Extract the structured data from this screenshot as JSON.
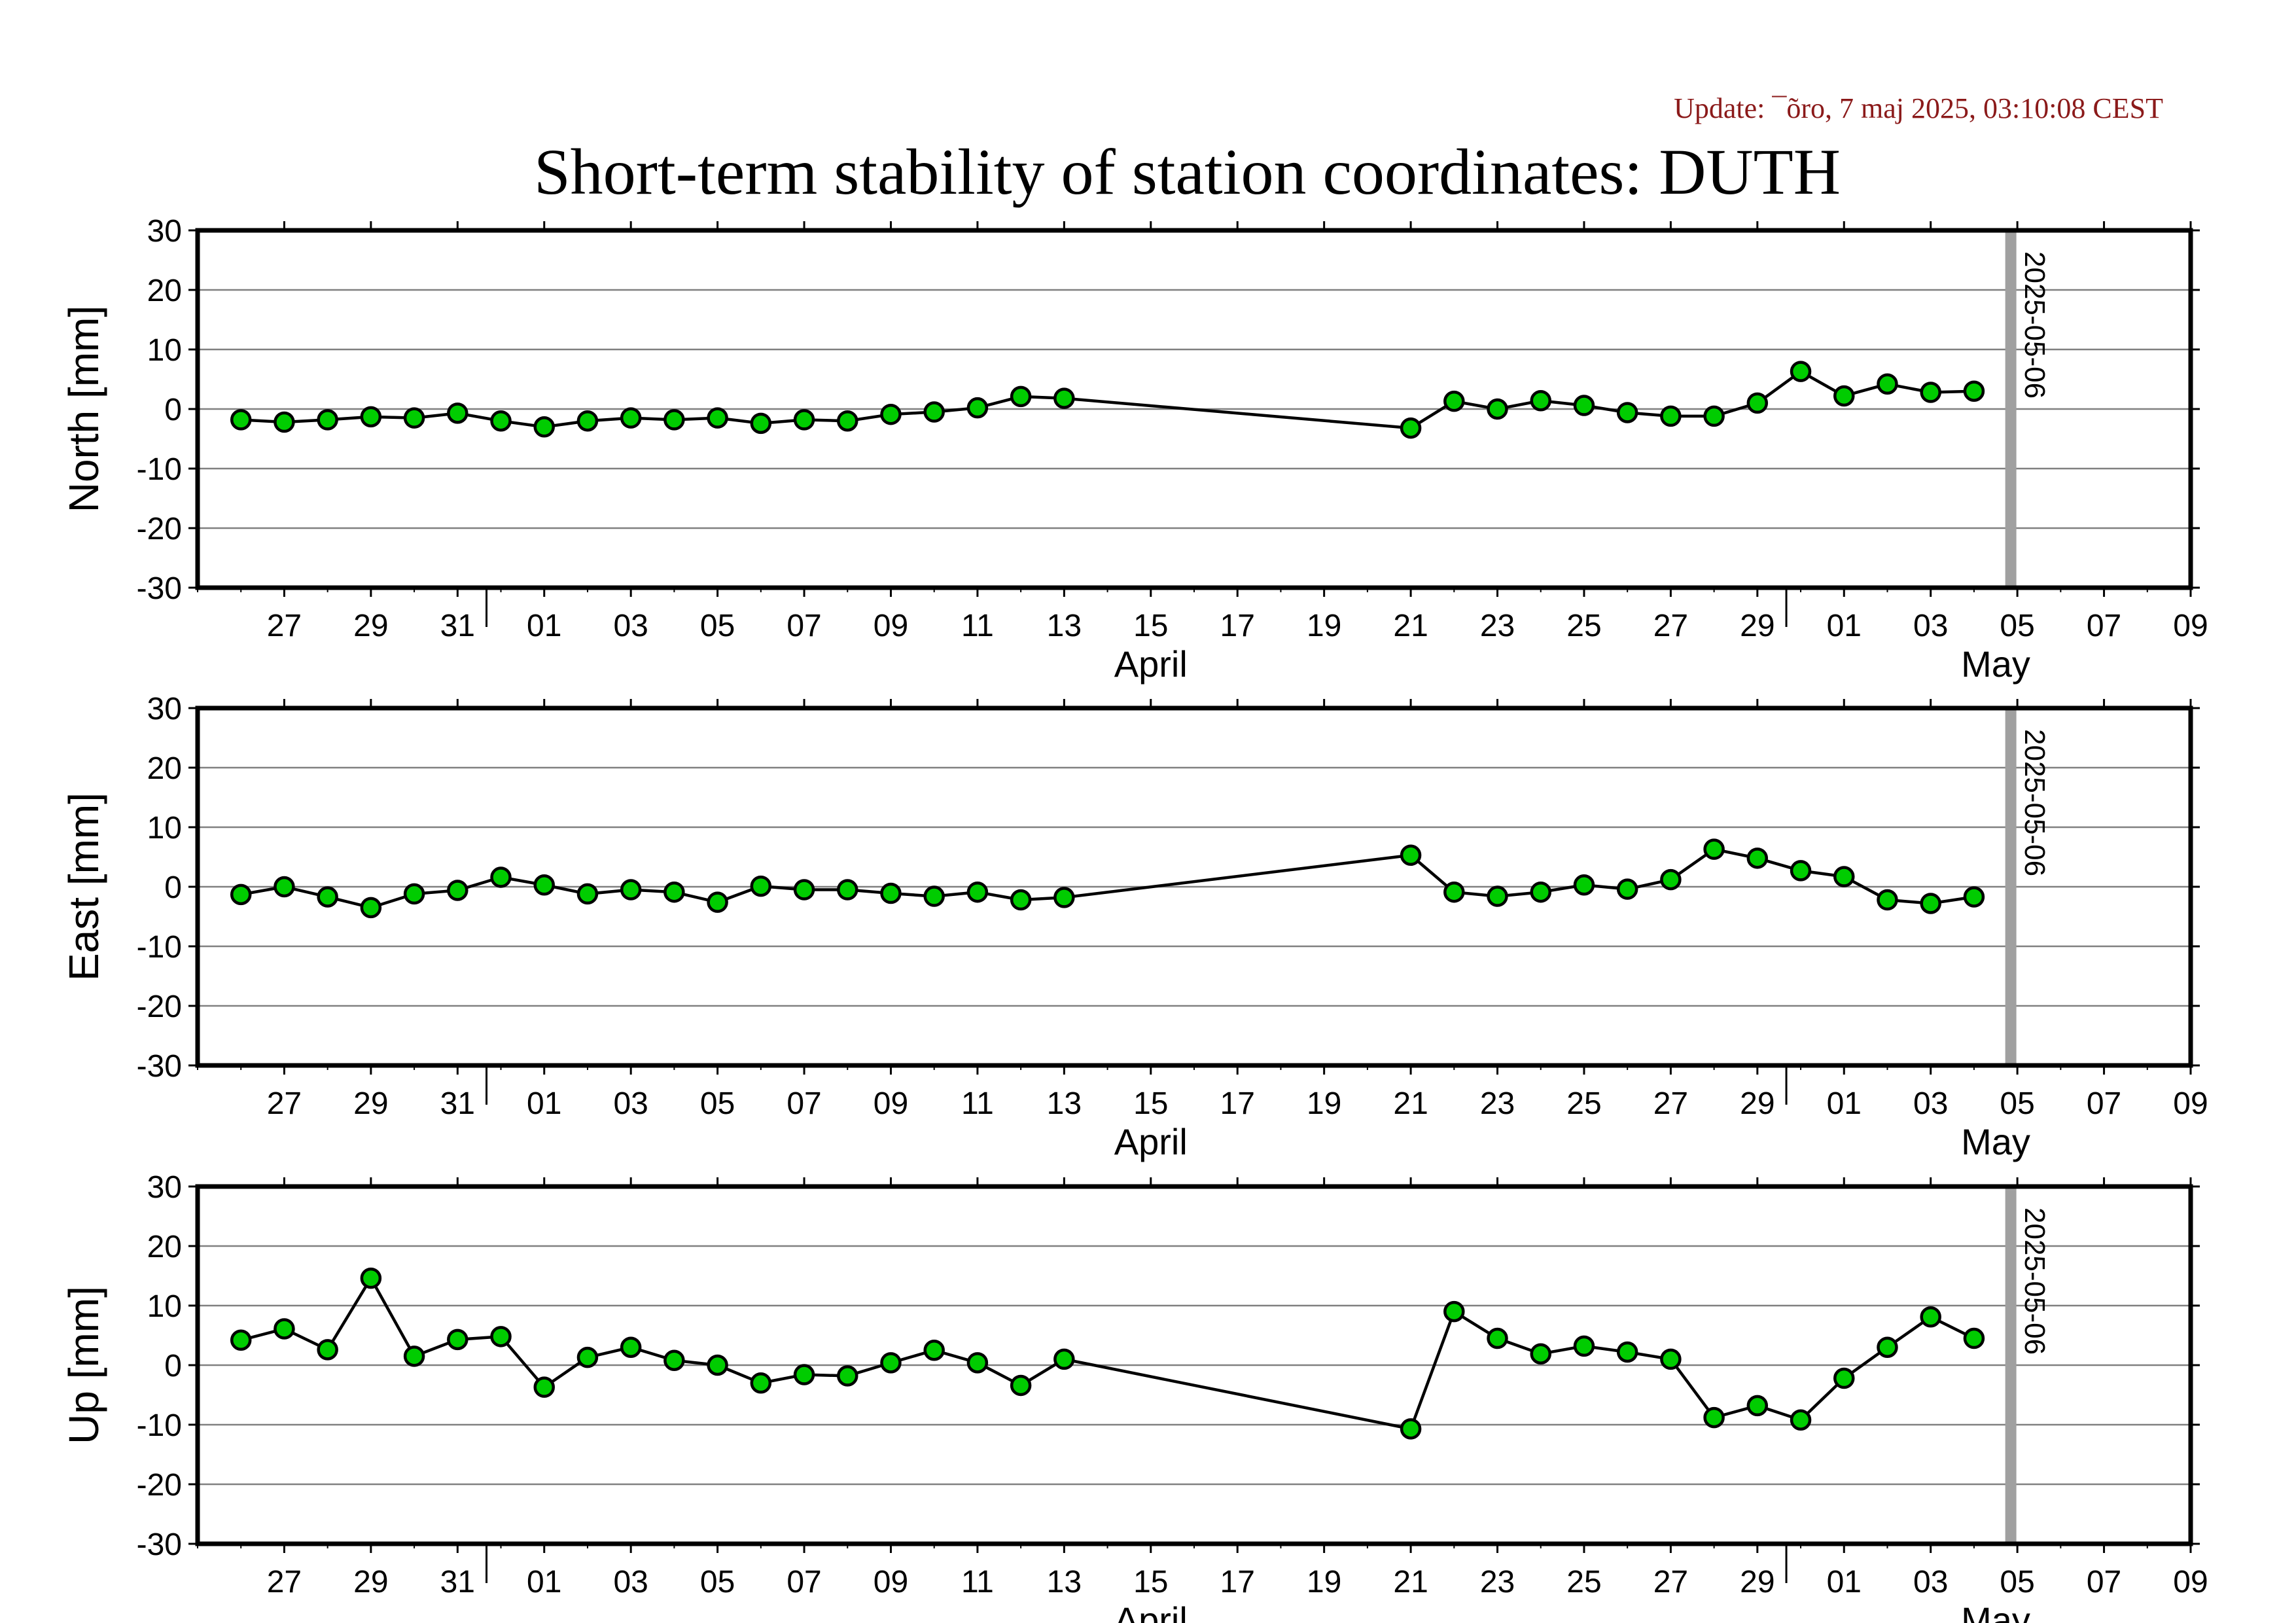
{
  "update_text": "Update: ¯õro, 7 maj 2025, 03:10:08 CEST",
  "title": "Short-term stability of station coordinates: DUTH",
  "chart_data": {
    "type": "line",
    "x_start": "2025-03-25",
    "x_end": "2025-05-10",
    "x_tick_labels": [
      "27",
      "29",
      "31",
      "01",
      "03",
      "05",
      "07",
      "09",
      "11",
      "13",
      "15",
      "17",
      "19",
      "21",
      "23",
      "25",
      "27",
      "29",
      "01",
      "03",
      "05",
      "07",
      "09"
    ],
    "month_labels": [
      "April",
      "May"
    ],
    "marker_line": {
      "date": "2025-05-06",
      "label": "2025-05-06",
      "color": "#a0a0a0"
    },
    "marker_color": "#00cc00",
    "ylim": [
      -30,
      30
    ],
    "y_ticks": [
      30,
      20,
      10,
      0,
      -10,
      -20,
      -30
    ],
    "grid": true,
    "panels": [
      {
        "ylabel": "North [mm]",
        "points": [
          [
            "2025-03-26",
            -1.8
          ],
          [
            "2025-03-27",
            -2.2
          ],
          [
            "2025-03-28",
            -1.8
          ],
          [
            "2025-03-29",
            -1.3
          ],
          [
            "2025-03-30",
            -1.5
          ],
          [
            "2025-03-31",
            -0.7
          ],
          [
            "2025-04-01",
            -2.0
          ],
          [
            "2025-04-02",
            -3.0
          ],
          [
            "2025-04-03",
            -2.0
          ],
          [
            "2025-04-04",
            -1.5
          ],
          [
            "2025-04-05",
            -1.8
          ],
          [
            "2025-04-06",
            -1.5
          ],
          [
            "2025-04-07",
            -2.4
          ],
          [
            "2025-04-08",
            -1.8
          ],
          [
            "2025-04-09",
            -2.0
          ],
          [
            "2025-04-10",
            -0.9
          ],
          [
            "2025-04-11",
            -0.5
          ],
          [
            "2025-04-12",
            0.2
          ],
          [
            "2025-04-13",
            2.1
          ],
          [
            "2025-04-14",
            1.8
          ],
          [
            "2025-04-22",
            -3.2
          ],
          [
            "2025-04-23",
            1.3
          ],
          [
            "2025-04-24",
            0.0
          ],
          [
            "2025-04-25",
            1.4
          ],
          [
            "2025-04-26",
            0.6
          ],
          [
            "2025-04-27",
            -0.6
          ],
          [
            "2025-04-28",
            -1.2
          ],
          [
            "2025-04-29",
            -1.2
          ],
          [
            "2025-04-30",
            1.0
          ],
          [
            "2025-05-01",
            6.3
          ],
          [
            "2025-05-02",
            2.2
          ],
          [
            "2025-05-03",
            4.2
          ],
          [
            "2025-05-04",
            2.8
          ],
          [
            "2025-05-05",
            3.0
          ]
        ]
      },
      {
        "ylabel": "East [mm]",
        "points": [
          [
            "2025-03-26",
            -1.3
          ],
          [
            "2025-03-27",
            0.0
          ],
          [
            "2025-03-28",
            -1.7
          ],
          [
            "2025-03-29",
            -3.5
          ],
          [
            "2025-03-30",
            -1.2
          ],
          [
            "2025-03-31",
            -0.6
          ],
          [
            "2025-04-01",
            1.6
          ],
          [
            "2025-04-02",
            0.3
          ],
          [
            "2025-04-03",
            -1.2
          ],
          [
            "2025-04-04",
            -0.5
          ],
          [
            "2025-04-05",
            -0.9
          ],
          [
            "2025-04-06",
            -2.6
          ],
          [
            "2025-04-07",
            0.1
          ],
          [
            "2025-04-08",
            -0.5
          ],
          [
            "2025-04-09",
            -0.5
          ],
          [
            "2025-04-10",
            -1.1
          ],
          [
            "2025-04-11",
            -1.6
          ],
          [
            "2025-04-12",
            -0.9
          ],
          [
            "2025-04-13",
            -2.2
          ],
          [
            "2025-04-14",
            -1.8
          ],
          [
            "2025-04-22",
            5.3
          ],
          [
            "2025-04-23",
            -0.9
          ],
          [
            "2025-04-24",
            -1.6
          ],
          [
            "2025-04-25",
            -0.9
          ],
          [
            "2025-04-26",
            0.3
          ],
          [
            "2025-04-27",
            -0.4
          ],
          [
            "2025-04-28",
            1.2
          ],
          [
            "2025-04-29",
            6.3
          ],
          [
            "2025-04-30",
            4.8
          ],
          [
            "2025-05-01",
            2.7
          ],
          [
            "2025-05-02",
            1.7
          ],
          [
            "2025-05-03",
            -2.2
          ],
          [
            "2025-05-04",
            -2.8
          ],
          [
            "2025-05-05",
            -1.7
          ]
        ]
      },
      {
        "ylabel": "Up [mm]",
        "points": [
          [
            "2025-03-26",
            4.2
          ],
          [
            "2025-03-27",
            6.1
          ],
          [
            "2025-03-28",
            2.6
          ],
          [
            "2025-03-29",
            14.6
          ],
          [
            "2025-03-30",
            1.5
          ],
          [
            "2025-03-31",
            4.3
          ],
          [
            "2025-04-01",
            4.8
          ],
          [
            "2025-04-02",
            -3.7
          ],
          [
            "2025-04-03",
            1.3
          ],
          [
            "2025-04-04",
            3.0
          ],
          [
            "2025-04-05",
            0.8
          ],
          [
            "2025-04-06",
            0.0
          ],
          [
            "2025-04-07",
            -3.0
          ],
          [
            "2025-04-08",
            -1.6
          ],
          [
            "2025-04-09",
            -1.8
          ],
          [
            "2025-04-10",
            0.4
          ],
          [
            "2025-04-11",
            2.5
          ],
          [
            "2025-04-12",
            0.4
          ],
          [
            "2025-04-13",
            -3.4
          ],
          [
            "2025-04-14",
            1.0
          ],
          [
            "2025-04-22",
            -10.7
          ],
          [
            "2025-04-23",
            9.0
          ],
          [
            "2025-04-24",
            4.5
          ],
          [
            "2025-04-25",
            1.9
          ],
          [
            "2025-04-26",
            3.2
          ],
          [
            "2025-04-27",
            2.2
          ],
          [
            "2025-04-28",
            1.0
          ],
          [
            "2025-04-29",
            -8.8
          ],
          [
            "2025-04-30",
            -6.8
          ],
          [
            "2025-05-01",
            -9.2
          ],
          [
            "2025-05-02",
            -2.2
          ],
          [
            "2025-05-03",
            3.0
          ],
          [
            "2025-05-04",
            8.1
          ],
          [
            "2025-05-05",
            4.5
          ]
        ]
      }
    ]
  }
}
